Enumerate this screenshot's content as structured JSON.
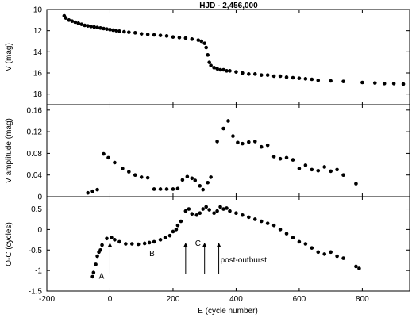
{
  "chart_data": {
    "type": "scatter",
    "title": "HJD - 2,456,000",
    "xlabel": "E (cycle number)",
    "x_range": [
      -200,
      950
    ],
    "x_ticks": [
      "-200",
      "0",
      "200",
      "400",
      "600",
      "800"
    ],
    "x_tick_values": [
      -200,
      0,
      200,
      400,
      600,
      800
    ],
    "panels": [
      {
        "id": "magnitude",
        "ylabel": "V (mag)",
        "y_range": [
          10,
          19
        ],
        "y_inverted": true,
        "y_ticks": [
          "10",
          "12",
          "14",
          "16",
          "18"
        ],
        "y_tick_values": [
          10,
          12,
          14,
          16,
          18
        ],
        "series": [
          {
            "points": [
              [
                -145,
                10.6
              ],
              [
                -140,
                10.8
              ],
              [
                -130,
                11.0
              ],
              [
                -120,
                11.1
              ],
              [
                -110,
                11.2
              ],
              [
                -100,
                11.3
              ],
              [
                -90,
                11.4
              ],
              [
                -80,
                11.5
              ],
              [
                -70,
                11.55
              ],
              [
                -60,
                11.6
              ],
              [
                -50,
                11.65
              ],
              [
                -40,
                11.7
              ],
              [
                -30,
                11.75
              ],
              [
                -20,
                11.8
              ],
              [
                -10,
                11.85
              ],
              [
                0,
                11.9
              ],
              [
                10,
                11.95
              ],
              [
                20,
                12.0
              ],
              [
                30,
                12.05
              ],
              [
                45,
                12.1
              ],
              [
                60,
                12.15
              ],
              [
                80,
                12.2
              ],
              [
                100,
                12.3
              ],
              [
                120,
                12.35
              ],
              [
                140,
                12.4
              ],
              [
                160,
                12.45
              ],
              [
                180,
                12.5
              ],
              [
                200,
                12.6
              ],
              [
                220,
                12.65
              ],
              [
                240,
                12.7
              ],
              [
                260,
                12.8
              ],
              [
                280,
                12.9
              ],
              [
                290,
                13.0
              ],
              [
                300,
                13.2
              ],
              [
                305,
                13.6
              ],
              [
                310,
                14.3
              ],
              [
                315,
                15.0
              ],
              [
                320,
                15.3
              ],
              [
                330,
                15.5
              ],
              [
                340,
                15.6
              ],
              [
                350,
                15.7
              ],
              [
                360,
                15.7
              ],
              [
                370,
                15.8
              ],
              [
                380,
                15.8
              ],
              [
                400,
                15.9
              ],
              [
                420,
                16.0
              ],
              [
                440,
                16.1
              ],
              [
                460,
                16.1
              ],
              [
                480,
                16.2
              ],
              [
                500,
                16.2
              ],
              [
                520,
                16.3
              ],
              [
                540,
                16.3
              ],
              [
                560,
                16.4
              ],
              [
                580,
                16.45
              ],
              [
                600,
                16.5
              ],
              [
                620,
                16.55
              ],
              [
                640,
                16.6
              ],
              [
                660,
                16.7
              ],
              [
                700,
                16.75
              ],
              [
                740,
                16.8
              ],
              [
                800,
                16.9
              ],
              [
                840,
                16.95
              ],
              [
                870,
                17.0
              ],
              [
                900,
                17.0
              ],
              [
                930,
                17.05
              ]
            ]
          }
        ]
      },
      {
        "id": "amplitude",
        "ylabel": "V amplitude (mag)",
        "y_range": [
          0,
          0.17
        ],
        "y_ticks": [
          "0",
          "0.04",
          "0.08",
          "0.12",
          "0.16"
        ],
        "y_tick_values": [
          0,
          0.04,
          0.08,
          0.12,
          0.16
        ],
        "series": [
          {
            "points": [
              [
                -70,
                0.007
              ],
              [
                -55,
                0.01
              ],
              [
                -40,
                0.013
              ],
              [
                -20,
                0.079
              ],
              [
                -5,
                0.072
              ],
              [
                15,
                0.063
              ],
              [
                40,
                0.052
              ],
              [
                60,
                0.046
              ],
              [
                80,
                0.04
              ],
              [
                100,
                0.036
              ],
              [
                120,
                0.035
              ],
              [
                140,
                0.014
              ],
              [
                160,
                0.014
              ],
              [
                180,
                0.014
              ],
              [
                200,
                0.014
              ],
              [
                215,
                0.015
              ],
              [
                230,
                0.031
              ],
              [
                245,
                0.037
              ],
              [
                260,
                0.034
              ],
              [
                270,
                0.03
              ],
              [
                285,
                0.02
              ],
              [
                295,
                0.013
              ],
              [
                310,
                0.026
              ],
              [
                320,
                0.036
              ],
              [
                340,
                0.102
              ],
              [
                360,
                0.126
              ],
              [
                375,
                0.14
              ],
              [
                390,
                0.112
              ],
              [
                405,
                0.1
              ],
              [
                420,
                0.098
              ],
              [
                440,
                0.101
              ],
              [
                460,
                0.102
              ],
              [
                480,
                0.092
              ],
              [
                500,
                0.095
              ],
              [
                520,
                0.074
              ],
              [
                540,
                0.07
              ],
              [
                560,
                0.072
              ],
              [
                580,
                0.068
              ],
              [
                600,
                0.052
              ],
              [
                620,
                0.058
              ],
              [
                640,
                0.05
              ],
              [
                660,
                0.048
              ],
              [
                680,
                0.055
              ],
              [
                700,
                0.047
              ],
              [
                720,
                0.05
              ],
              [
                740,
                0.04
              ],
              [
                780,
                0.024
              ]
            ]
          }
        ]
      },
      {
        "id": "o-c",
        "ylabel": "O-C (cycles)",
        "y_range": [
          -1.5,
          0.8
        ],
        "y_ticks": [
          "-1.5",
          "-1",
          "-0.5",
          "0",
          "0.5"
        ],
        "y_tick_values": [
          -1.5,
          -1,
          -0.5,
          0,
          0.5
        ],
        "series": [
          {
            "points": [
              [
                -55,
                -1.15
              ],
              [
                -52,
                -1.05
              ],
              [
                -45,
                -0.85
              ],
              [
                -40,
                -0.65
              ],
              [
                -35,
                -0.55
              ],
              [
                -30,
                -0.5
              ],
              [
                -25,
                -0.38
              ],
              [
                -10,
                -0.22
              ],
              [
                5,
                -0.2
              ],
              [
                15,
                -0.25
              ],
              [
                30,
                -0.3
              ],
              [
                50,
                -0.35
              ],
              [
                70,
                -0.35
              ],
              [
                90,
                -0.36
              ],
              [
                110,
                -0.34
              ],
              [
                125,
                -0.32
              ],
              [
                140,
                -0.3
              ],
              [
                160,
                -0.25
              ],
              [
                175,
                -0.2
              ],
              [
                190,
                -0.15
              ],
              [
                200,
                -0.05
              ],
              [
                210,
                0.0
              ],
              [
                215,
                0.1
              ],
              [
                225,
                0.2
              ],
              [
                240,
                0.45
              ],
              [
                250,
                0.5
              ],
              [
                260,
                0.38
              ],
              [
                275,
                0.35
              ],
              [
                285,
                0.4
              ],
              [
                295,
                0.5
              ],
              [
                305,
                0.55
              ],
              [
                315,
                0.48
              ],
              [
                330,
                0.4
              ],
              [
                340,
                0.45
              ],
              [
                350,
                0.55
              ],
              [
                360,
                0.5
              ],
              [
                370,
                0.52
              ],
              [
                380,
                0.45
              ],
              [
                400,
                0.4
              ],
              [
                420,
                0.35
              ],
              [
                440,
                0.3
              ],
              [
                460,
                0.25
              ],
              [
                480,
                0.2
              ],
              [
                500,
                0.15
              ],
              [
                520,
                0.1
              ],
              [
                540,
                0.0
              ],
              [
                560,
                -0.1
              ],
              [
                580,
                -0.2
              ],
              [
                600,
                -0.3
              ],
              [
                620,
                -0.35
              ],
              [
                640,
                -0.45
              ],
              [
                660,
                -0.55
              ],
              [
                680,
                -0.6
              ],
              [
                700,
                -0.55
              ],
              [
                720,
                -0.65
              ],
              [
                740,
                -0.7
              ],
              [
                780,
                -0.9
              ],
              [
                790,
                -0.95
              ]
            ]
          }
        ],
        "arrows": [
          {
            "x": 0
          },
          {
            "x": 240
          },
          {
            "x": 300
          },
          {
            "x": 345
          }
        ],
        "annotations": [
          {
            "text": "A",
            "x": -35,
            "y": -1.2
          },
          {
            "text": "B",
            "x": 125,
            "y": -0.65
          },
          {
            "text": "C",
            "x": 270,
            "y": -0.4
          },
          {
            "text": "post-outburst",
            "x": 350,
            "y": -0.8
          }
        ]
      }
    ]
  }
}
